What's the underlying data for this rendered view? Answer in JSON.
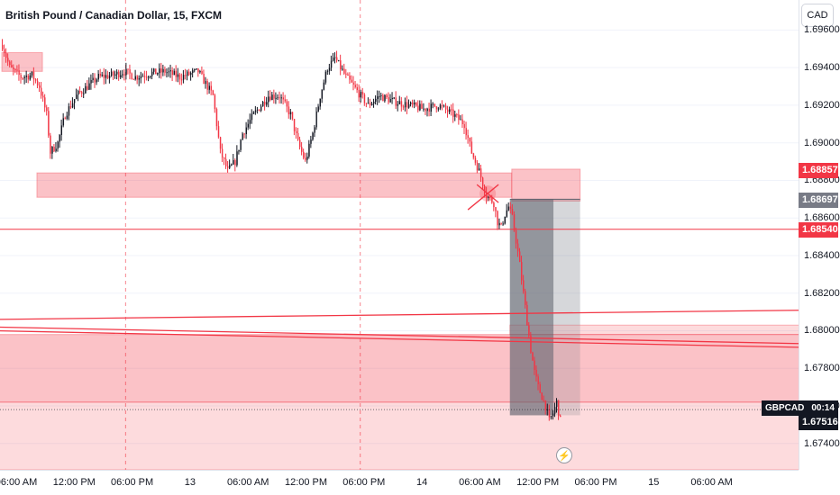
{
  "header": {
    "title": "British Pound / Canadian Dollar, 15, FXCM",
    "currency_button": "CAD"
  },
  "colors": {
    "up": "#131722",
    "down": "#f23645",
    "zone_fill": "#f23645",
    "position_dark": "#787b86"
  },
  "badges": {
    "price_a": {
      "text": "1.68857",
      "color": "#f23645"
    },
    "price_b": {
      "text": "1.68697",
      "color": "#787b86"
    },
    "price_c": {
      "text": "1.68540",
      "color": "#f23645"
    },
    "price_d": {
      "text": "1.67516",
      "color": "#131722"
    },
    "symbol": "GBPCAD",
    "countdown": "00:14"
  },
  "alert_icon": "lightning-bolt-icon",
  "chart_data": {
    "type": "candlestick",
    "symbol": "GBPCAD",
    "timeframe": "15",
    "source": "FXCM",
    "y_ticks": [
      "1.69600",
      "1.69400",
      "1.69200",
      "1.69000",
      "1.68800",
      "1.68600",
      "1.68400",
      "1.68200",
      "1.68000",
      "1.67800",
      "1.67600",
      "1.67400"
    ],
    "y_tick_values": [
      1.696,
      1.694,
      1.692,
      1.69,
      1.688,
      1.686,
      1.684,
      1.682,
      1.68,
      1.678,
      1.676,
      1.674
    ],
    "ylim": [
      1.6726,
      1.6976
    ],
    "x_ticks": [
      "06:00 AM",
      "12:00 PM",
      "06:00 PM",
      "13",
      "06:00 AM",
      "12:00 PM",
      "06:00 PM",
      "14",
      "06:00 AM",
      "12:00 PM",
      "06:00 PM",
      "15",
      "06:00 AM"
    ],
    "anchors": [
      [
        0,
        1.6952
      ],
      [
        4,
        1.694
      ],
      [
        10,
        1.6935
      ],
      [
        16,
        1.6936
      ],
      [
        20,
        1.693
      ],
      [
        24,
        1.6915
      ],
      [
        26,
        1.6895
      ],
      [
        30,
        1.69
      ],
      [
        34,
        1.6915
      ],
      [
        40,
        1.6925
      ],
      [
        46,
        1.693
      ],
      [
        52,
        1.6935
      ],
      [
        60,
        1.6936
      ],
      [
        66,
        1.6938
      ],
      [
        72,
        1.6935
      ],
      [
        80,
        1.6937
      ],
      [
        88,
        1.6938
      ],
      [
        96,
        1.6935
      ],
      [
        106,
        1.6938
      ],
      [
        114,
        1.6925
      ],
      [
        118,
        1.6895
      ],
      [
        122,
        1.6885
      ],
      [
        126,
        1.689
      ],
      [
        130,
        1.6905
      ],
      [
        136,
        1.6915
      ],
      [
        144,
        1.6925
      ],
      [
        150,
        1.6925
      ],
      [
        156,
        1.6915
      ],
      [
        160,
        1.69
      ],
      [
        164,
        1.689
      ],
      [
        168,
        1.6905
      ],
      [
        172,
        1.6925
      ],
      [
        176,
        1.694
      ],
      [
        180,
        1.6945
      ],
      [
        186,
        1.6935
      ],
      [
        190,
        1.693
      ],
      [
        194,
        1.6925
      ],
      [
        198,
        1.692
      ],
      [
        204,
        1.6925
      ],
      [
        212,
        1.6922
      ],
      [
        220,
        1.692
      ],
      [
        228,
        1.6918
      ],
      [
        236,
        1.692
      ],
      [
        244,
        1.6915
      ],
      [
        250,
        1.691
      ],
      [
        254,
        1.6895
      ],
      [
        258,
        1.6885
      ],
      [
        262,
        1.6872
      ],
      [
        266,
        1.6868
      ],
      [
        268,
        1.6858
      ],
      [
        270,
        1.6855
      ],
      [
        272,
        1.6862
      ],
      [
        274,
        1.6866
      ],
      [
        276,
        1.686
      ],
      [
        278,
        1.6848
      ],
      [
        280,
        1.6835
      ],
      [
        282,
        1.682
      ],
      [
        284,
        1.6805
      ],
      [
        286,
        1.679
      ],
      [
        288,
        1.6778
      ],
      [
        290,
        1.677
      ],
      [
        292,
        1.6765
      ],
      [
        294,
        1.676
      ],
      [
        296,
        1.6752
      ],
      [
        298,
        1.6756
      ],
      [
        300,
        1.6762
      ],
      [
        302,
        1.6752
      ]
    ],
    "annotations": [
      {
        "kind": "zone",
        "x0": 19,
        "x1": 276,
        "y0": 1.6871,
        "y1": 1.6884
      },
      {
        "kind": "zone",
        "x0": 276,
        "x1": 313,
        "y0": 1.6869,
        "y1": 1.6886
      },
      {
        "kind": "zone",
        "x0": 0,
        "x1": 22,
        "y0": 1.6938,
        "y1": 1.6948
      },
      {
        "kind": "zone",
        "x0": -5,
        "x1": 440,
        "y0": 1.6762,
        "y1": 1.6798
      },
      {
        "kind": "zone",
        "x0": -5,
        "x1": 440,
        "y0": 1.6726,
        "y1": 1.6762,
        "light": true
      },
      {
        "kind": "zone",
        "x0": 275,
        "x1": 440,
        "y0": 1.6798,
        "y1": 1.6803,
        "light": true
      },
      {
        "kind": "position",
        "x0": 275,
        "x1": 313,
        "entry": 1.687,
        "stop": 1.6803,
        "target": 1.6755
      },
      {
        "kind": "hline",
        "y": 1.6854
      },
      {
        "kind": "line",
        "x0": -5,
        "y0": 1.6806,
        "x1": 440,
        "y1": 1.6811
      },
      {
        "kind": "line",
        "x0": -5,
        "y0": 1.6802,
        "x1": 440,
        "y1": 1.6793
      },
      {
        "kind": "line",
        "x0": -5,
        "y0": 1.68,
        "x1": 440,
        "y1": 1.6791
      },
      {
        "kind": "vline",
        "x": 67
      },
      {
        "kind": "vline",
        "x": 194
      }
    ]
  }
}
